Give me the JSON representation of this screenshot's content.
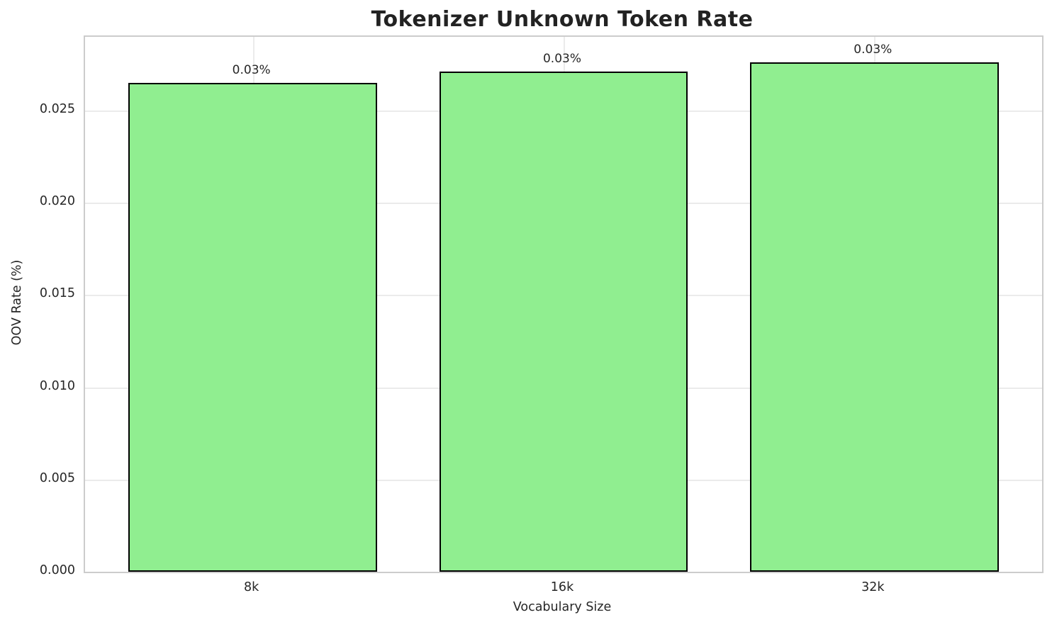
{
  "chart_data": {
    "type": "bar",
    "title": "Tokenizer Unknown Token Rate",
    "xlabel": "Vocabulary Size",
    "ylabel": "OOV Rate (%)",
    "categories": [
      "8k",
      "16k",
      "32k"
    ],
    "values": [
      0.0265,
      0.0271,
      0.0276
    ],
    "bar_labels": [
      "0.03%",
      "0.03%",
      "0.03%"
    ],
    "ylim": [
      0,
      0.029
    ],
    "xlim": [
      -0.54,
      2.54
    ],
    "bar_width_units": 0.8,
    "yticks": [
      0,
      0.005,
      0.01,
      0.015,
      0.02,
      0.025
    ],
    "ytick_labels": [
      "0.000",
      "0.005",
      "0.010",
      "0.015",
      "0.020",
      "0.025"
    ],
    "grid": "on",
    "legend_position": "none",
    "bar_fill_color": "#90EE90",
    "bar_edge_color": "#000000",
    "grid_color": "#ebebeb",
    "spine_color": "#cccccc",
    "text_color": "#262626"
  }
}
